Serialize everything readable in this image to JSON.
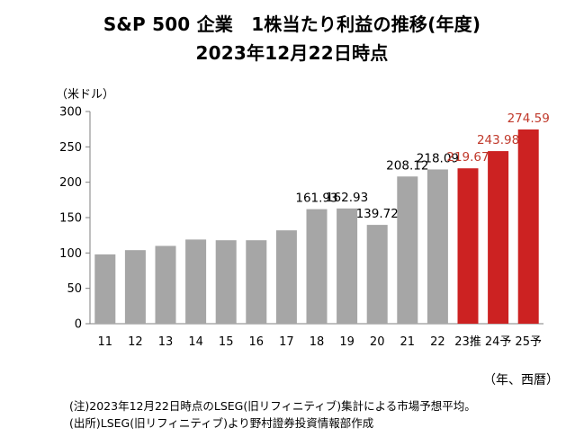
{
  "title_line1": "S&P 500 企業　1株当たり利益の推移(年度)",
  "title_line2": "2023年12月22日時点",
  "y_unit": "（米ドル）",
  "x_unit": "（年、西暦）",
  "notes": {
    "line1": "(注)2023年12月22日時点のLSEG(旧リフィニティブ)集計による市場予想平均。",
    "line2": "(出所)LSEG(旧リフィニティブ)より野村證券投資情報部作成"
  },
  "colors": {
    "actual": "#a6a6a6",
    "forecast": "#cc2222",
    "label_forecast": "#c0392b",
    "axis": "#7f7f7f"
  },
  "chart_data": {
    "type": "bar",
    "categories": [
      "11",
      "12",
      "13",
      "14",
      "15",
      "16",
      "17",
      "18",
      "19",
      "20",
      "21",
      "22",
      "23推",
      "24予",
      "25予"
    ],
    "values": [
      98,
      104,
      110,
      119,
      118,
      118,
      132,
      161.93,
      162.93,
      139.72,
      208.12,
      218.09,
      219.67,
      243.98,
      274.59
    ],
    "forecast": [
      false,
      false,
      false,
      false,
      false,
      false,
      false,
      false,
      false,
      false,
      false,
      false,
      true,
      true,
      true
    ],
    "data_labels": [
      "",
      "",
      "",
      "",
      "",
      "",
      "",
      "161.93",
      "162.93",
      "139.72",
      "208.12",
      "218.09",
      "219.67",
      "243.98",
      "274.59"
    ],
    "ylim": [
      0,
      300
    ],
    "yticks": [
      0,
      50,
      100,
      150,
      200,
      250,
      300
    ],
    "ylabel": "（米ドル）",
    "xlabel": "（年、西暦）",
    "grid": false,
    "legend": "none"
  }
}
